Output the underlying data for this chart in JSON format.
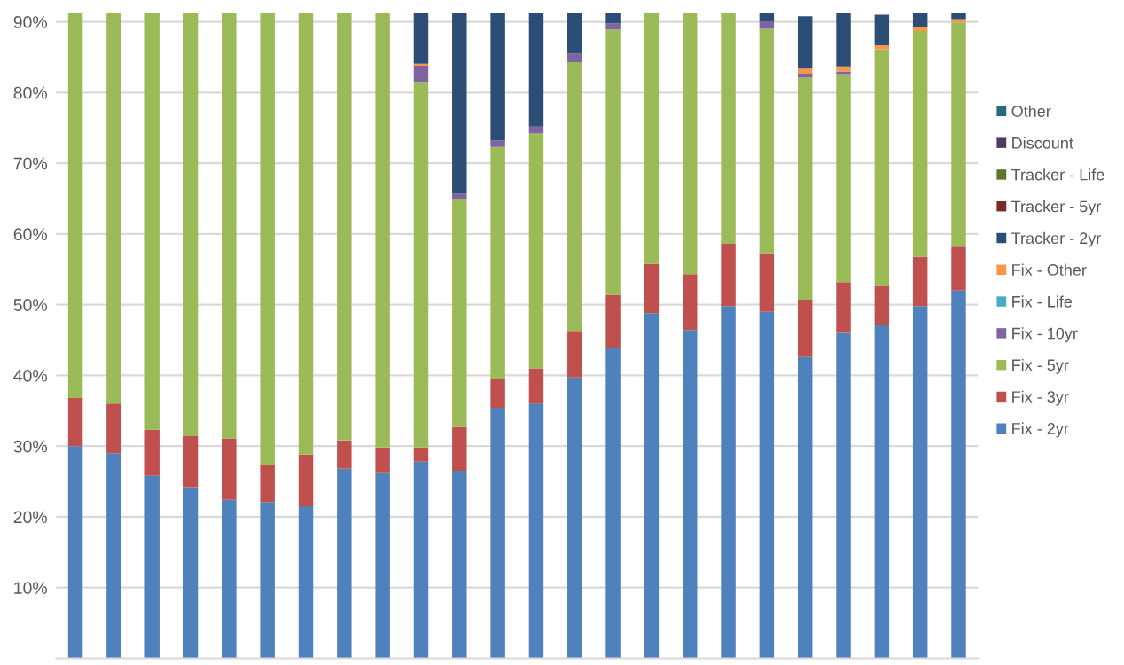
{
  "chart_data": {
    "type": "bar",
    "stacked": true,
    "categories": [
      null,
      null,
      null,
      null,
      null,
      null,
      null,
      null,
      null,
      null,
      null,
      null,
      null,
      null,
      null,
      null,
      null,
      null,
      null,
      null,
      null,
      null,
      null,
      null
    ],
    "series": [
      {
        "name": "Fix - 2yr",
        "color": "#4f81bd",
        "values": [
          30.0,
          29.0,
          25.8,
          24.2,
          22.4,
          22.1,
          21.5,
          26.8,
          26.3,
          27.8,
          26.5,
          35.4,
          36.0,
          39.7,
          43.9,
          48.8,
          46.4,
          49.8,
          49.0,
          42.6,
          46.0,
          47.2,
          49.8,
          52.0
        ]
      },
      {
        "name": "Fix - 3yr",
        "color": "#c0504d",
        "values": [
          6.8,
          7.0,
          6.5,
          7.2,
          8.7,
          5.2,
          7.3,
          4.0,
          3.5,
          2.0,
          6.2,
          4.1,
          5.0,
          6.6,
          7.5,
          7.0,
          7.9,
          8.8,
          8.3,
          8.1,
          7.2,
          5.5,
          7.0,
          6.2
        ]
      },
      {
        "name": "Fix - 5yr",
        "color": "#9bbb59",
        "values": [
          54.4,
          55.2,
          58.9,
          59.8,
          60.1,
          63.9,
          62.4,
          60.4,
          61.4,
          51.6,
          32.3,
          32.8,
          33.2,
          38.0,
          37.5,
          35.4,
          36.9,
          32.6,
          31.7,
          31.4,
          29.3,
          33.4,
          31.9,
          31.7
        ]
      },
      {
        "name": "Fix - 10yr",
        "color": "#8064a2",
        "values": [
          null,
          null,
          null,
          null,
          null,
          null,
          null,
          null,
          null,
          2.4,
          0.7,
          0.9,
          1.0,
          1.2,
          0.9,
          null,
          null,
          null,
          1.0,
          0.5,
          0.5,
          null,
          null,
          null
        ]
      },
      {
        "name": "Fix - Life",
        "color": "#4bacc6",
        "values": [
          null,
          null,
          null,
          null,
          null,
          null,
          null,
          null,
          null,
          null,
          null,
          null,
          null,
          null,
          null,
          null,
          null,
          null,
          null,
          null,
          null,
          null,
          null,
          null
        ]
      },
      {
        "name": "Fix - Other",
        "color": "#f79646",
        "values": [
          null,
          null,
          null,
          null,
          null,
          null,
          null,
          null,
          null,
          0.3,
          null,
          null,
          null,
          null,
          null,
          null,
          null,
          null,
          null,
          0.8,
          0.6,
          0.6,
          0.5,
          0.5
        ]
      },
      {
        "name": "Tracker - 2yr",
        "color": "#2c4d75",
        "values": [
          null,
          null,
          null,
          null,
          null,
          null,
          null,
          null,
          null,
          7.1,
          25.5,
          18.0,
          16.0,
          5.7,
          1.4,
          null,
          null,
          null,
          1.2,
          7.4,
          7.6,
          4.3,
          2.0,
          0.8
        ]
      },
      {
        "name": "Tracker - 5yr",
        "color": "#772c2a",
        "values": [
          null,
          null,
          null,
          null,
          null,
          null,
          null,
          null,
          null,
          null,
          null,
          null,
          null,
          null,
          null,
          null,
          null,
          null,
          null,
          null,
          null,
          null,
          null,
          null
        ]
      },
      {
        "name": "Tracker - Life",
        "color": "#5f7530",
        "values": [
          null,
          null,
          null,
          null,
          null,
          null,
          null,
          null,
          null,
          null,
          null,
          null,
          null,
          null,
          null,
          null,
          null,
          null,
          null,
          null,
          null,
          null,
          null,
          null
        ]
      },
      {
        "name": "Discount",
        "color": "#4d3b62",
        "values": [
          null,
          null,
          null,
          null,
          null,
          null,
          null,
          null,
          null,
          null,
          null,
          null,
          null,
          null,
          null,
          null,
          null,
          null,
          null,
          null,
          null,
          null,
          null,
          null
        ]
      },
      {
        "name": "Other",
        "color": "#276a7c",
        "values": [
          null,
          null,
          null,
          null,
          null,
          null,
          null,
          null,
          null,
          null,
          null,
          null,
          null,
          null,
          null,
          null,
          null,
          null,
          null,
          null,
          null,
          null,
          null,
          null
        ]
      }
    ],
    "ylim": [
      0,
      91.2
    ],
    "yticks": [
      {
        "value": 10,
        "label": "10%"
      },
      {
        "value": 20,
        "label": "20%"
      },
      {
        "value": 30,
        "label": "30%"
      },
      {
        "value": 40,
        "label": "40%"
      },
      {
        "value": 50,
        "label": "50%"
      },
      {
        "value": 60,
        "label": "60%"
      },
      {
        "value": 70,
        "label": "70%"
      },
      {
        "value": 80,
        "label": "80%"
      },
      {
        "value": 90,
        "label": "90%"
      }
    ],
    "grid": "y",
    "legend": "right",
    "tick_labels": "y"
  }
}
